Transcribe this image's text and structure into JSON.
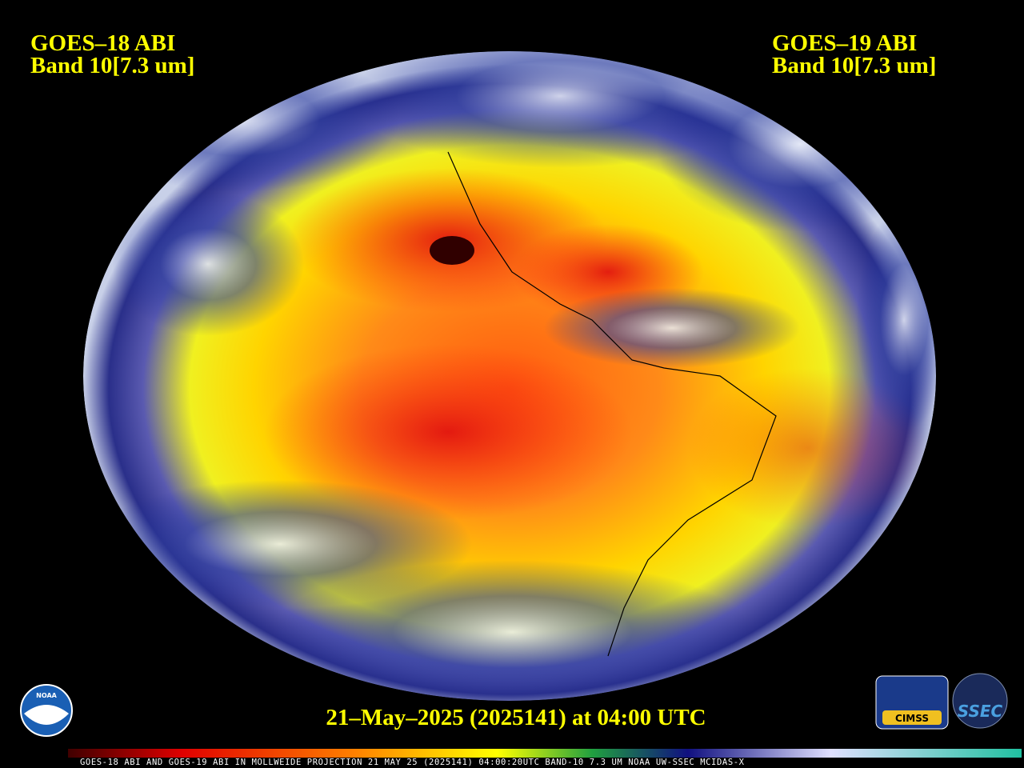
{
  "left_label": {
    "satellite": "GOES–18 ABI",
    "band": "Band 10[7.3 um]"
  },
  "right_label": {
    "satellite": "GOES–19 ABI",
    "band": "Band 10[7.3 um]"
  },
  "timestamp": "21–May–2025 (2025141) at 04:00 UTC",
  "footer": "GOES-18 ABI AND GOES-19 ABI IN MOLLWEIDE PROJECTION 21 MAY 25 (2025141) 04:00:20UTC BAND-10 7.3 UM NOAA UW-SSEC MCIDAS-X",
  "logos": {
    "noaa": "NOAA",
    "cimss": "CIMSS",
    "ssec": "SSEC"
  }
}
